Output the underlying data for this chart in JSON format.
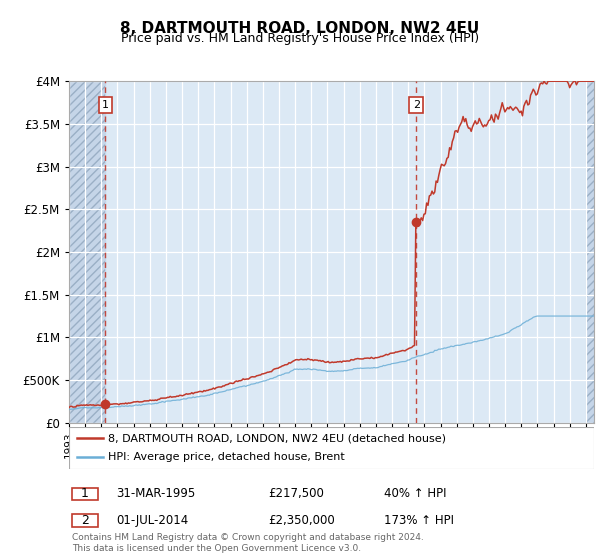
{
  "title": "8, DARTMOUTH ROAD, LONDON, NW2 4EU",
  "subtitle": "Price paid vs. HM Land Registry's House Price Index (HPI)",
  "hpi_label": "HPI: Average price, detached house, Brent",
  "property_label": "8, DARTMOUTH ROAD, LONDON, NW2 4EU (detached house)",
  "sale1_date": "31-MAR-1995",
  "sale1_price": 217500,
  "sale1_hpi_pct": "40% ↑ HPI",
  "sale2_date": "01-JUL-2014",
  "sale2_price": 2350000,
  "sale2_hpi_pct": "173% ↑ HPI",
  "red_color": "#c0392b",
  "blue_color": "#6baed6",
  "bg_color": "#dce9f5",
  "footnote": "Contains HM Land Registry data © Crown copyright and database right 2024.\nThis data is licensed under the Open Government Licence v3.0.",
  "ylim": [
    0,
    4000000
  ],
  "yticks": [
    0,
    500000,
    1000000,
    1500000,
    2000000,
    2500000,
    3000000,
    3500000,
    4000000
  ],
  "sale1_x": 1995.25,
  "sale2_x": 2014.5
}
